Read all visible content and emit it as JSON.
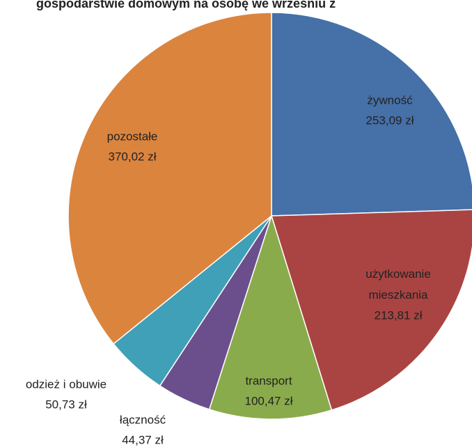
{
  "chart_data": {
    "type": "pie",
    "title": "gospodarstwie domowym na osobę we wrześniu z",
    "categories": [
      "żywność",
      "użytkowanie mieszkania",
      "transport",
      "łączność",
      "odzież i obuwie",
      "pozostałe"
    ],
    "values": [
      253.09,
      213.81,
      100.47,
      44.37,
      50.73,
      370.02
    ],
    "value_labels": [
      "253,09 zł",
      "213,81 zł",
      "100,47 zł",
      "44,37 zł",
      "50,73 zł",
      "370,02 zł"
    ],
    "colors": [
      "#4570a8",
      "#a94442",
      "#8aab4b",
      "#6b4f8d",
      "#3fa0b7",
      "#db843e"
    ]
  }
}
